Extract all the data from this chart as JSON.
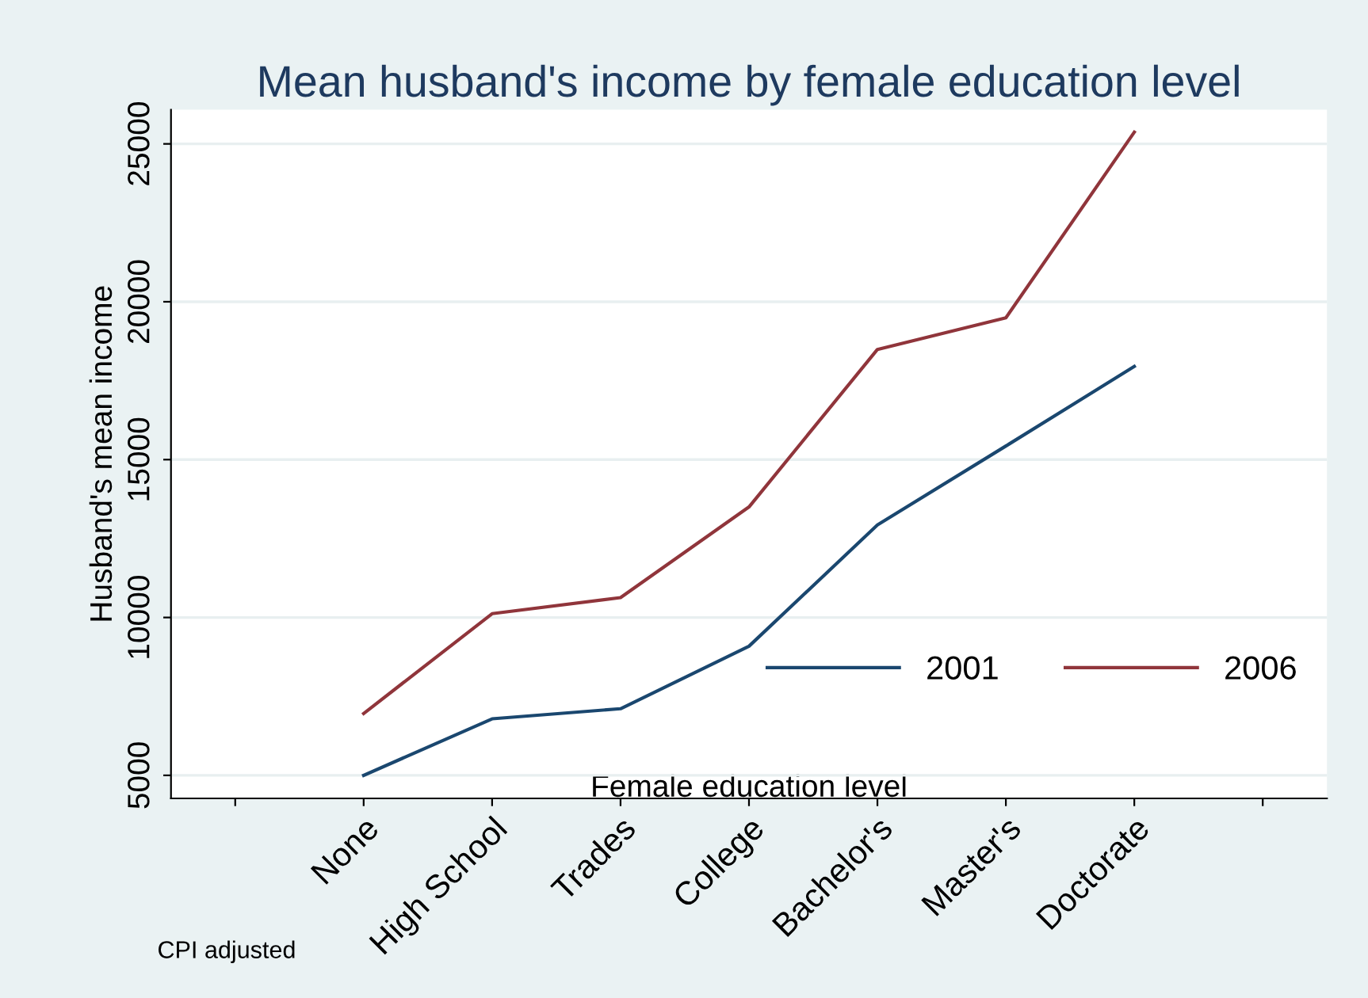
{
  "chart_data": {
    "type": "line",
    "title": "Mean husband's income by female education level",
    "xlabel": "Female education level",
    "ylabel": "Husband's mean income",
    "categories": [
      null,
      "None",
      "High School",
      "Trades",
      "College",
      "Bachelor's",
      "Master's",
      "Doctorate",
      null
    ],
    "series": [
      {
        "name": "2001",
        "color": "#1a476f",
        "values": [
          null,
          5000,
          6790,
          7110,
          9090,
          12930,
          15430,
          17950,
          null
        ]
      },
      {
        "name": "2006",
        "color": "#90353b",
        "values": [
          null,
          6960,
          10120,
          10630,
          13500,
          18490,
          19490,
          25370,
          null
        ]
      }
    ],
    "ylim": [
      4270,
      26080
    ],
    "yticks": [
      5000,
      10000,
      15000,
      20000,
      25000
    ],
    "grid": "y",
    "legend": "bottom right",
    "marker": "none",
    "line_style": "solid",
    "annotations": [
      "CPI adjusted"
    ]
  }
}
